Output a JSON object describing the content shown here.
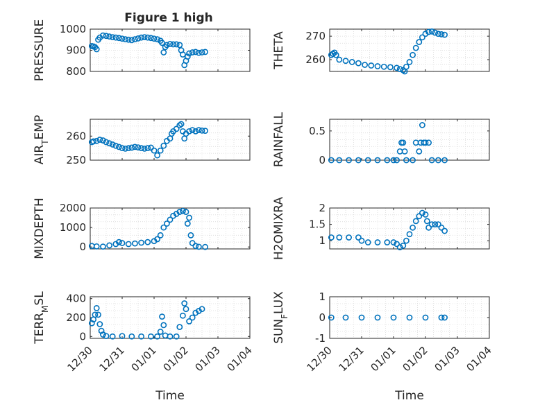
{
  "figure": {
    "title": "Figure 1 high",
    "x_axis_label": "Time",
    "x_tick_labels": [
      "12/30",
      "12/31",
      "01/01",
      "01/02",
      "01/03",
      "01/04"
    ]
  },
  "colors": {
    "marker": "#0072bd",
    "axis": "#262626",
    "grid": "#dcdcdc"
  },
  "chart_data": [
    {
      "type": "scatter",
      "marker": "circle-open",
      "grid": true,
      "ylabel": "PRESSURE",
      "xlabel": "",
      "ylim": [
        800,
        1000
      ],
      "yticks": [
        800,
        900,
        1000
      ],
      "xlim": [
        0,
        5
      ],
      "x_unit": "days since 12/30",
      "series": [
        {
          "points": [
            [
              0.05,
              920
            ],
            [
              0.1,
              918
            ],
            [
              0.15,
              915
            ],
            [
              0.2,
              905
            ],
            [
              0.25,
              950
            ],
            [
              0.3,
              960
            ],
            [
              0.4,
              970
            ],
            [
              0.5,
              968
            ],
            [
              0.6,
              965
            ],
            [
              0.7,
              962
            ],
            [
              0.8,
              960
            ],
            [
              0.9,
              958
            ],
            [
              1.0,
              955
            ],
            [
              1.1,
              952
            ],
            [
              1.2,
              950
            ],
            [
              1.3,
              948
            ],
            [
              1.4,
              952
            ],
            [
              1.5,
              956
            ],
            [
              1.6,
              960
            ],
            [
              1.7,
              962
            ],
            [
              1.8,
              960
            ],
            [
              1.9,
              958
            ],
            [
              2.0,
              955
            ],
            [
              2.1,
              952
            ],
            [
              2.2,
              945
            ],
            [
              2.25,
              935
            ],
            [
              2.3,
              890
            ],
            [
              2.35,
              915
            ],
            [
              2.4,
              925
            ],
            [
              2.5,
              930
            ],
            [
              2.6,
              928
            ],
            [
              2.7,
              928
            ],
            [
              2.8,
              925
            ],
            [
              2.85,
              900
            ],
            [
              2.9,
              880
            ],
            [
              2.95,
              830
            ],
            [
              3.0,
              850
            ],
            [
              3.05,
              870
            ],
            [
              3.1,
              885
            ],
            [
              3.2,
              890
            ],
            [
              3.3,
              892
            ],
            [
              3.4,
              888
            ],
            [
              3.5,
              890
            ],
            [
              3.6,
              892
            ]
          ]
        }
      ]
    },
    {
      "type": "scatter",
      "marker": "circle-open",
      "grid": true,
      "ylabel": "THETA",
      "xlabel": "",
      "ylim": [
        255,
        273
      ],
      "yticks": [
        260,
        270
      ],
      "xlim": [
        0,
        5
      ],
      "series": [
        {
          "points": [
            [
              0.05,
              262
            ],
            [
              0.1,
              262.5
            ],
            [
              0.15,
              263
            ],
            [
              0.2,
              262
            ],
            [
              0.3,
              260
            ],
            [
              0.5,
              259.5
            ],
            [
              0.7,
              259
            ],
            [
              0.9,
              258.5
            ],
            [
              1.1,
              257.8
            ],
            [
              1.3,
              257.5
            ],
            [
              1.5,
              257.2
            ],
            [
              1.7,
              257
            ],
            [
              1.9,
              256.8
            ],
            [
              2.1,
              256.5
            ],
            [
              2.2,
              256
            ],
            [
              2.3,
              255.5
            ],
            [
              2.35,
              255
            ],
            [
              2.4,
              257
            ],
            [
              2.5,
              259
            ],
            [
              2.6,
              262
            ],
            [
              2.7,
              265
            ],
            [
              2.8,
              267.5
            ],
            [
              2.9,
              269.5
            ],
            [
              3.0,
              271
            ],
            [
              3.1,
              271.8
            ],
            [
              3.2,
              272
            ],
            [
              3.3,
              271.5
            ],
            [
              3.4,
              271
            ],
            [
              3.5,
              270.8
            ],
            [
              3.6,
              270.6
            ]
          ]
        }
      ]
    },
    {
      "type": "scatter",
      "marker": "circle-open",
      "grid": true,
      "ylabel": "AIR_TEMP",
      "xlabel": "",
      "ylim": [
        250,
        267
      ],
      "yticks": [
        250,
        260
      ],
      "xlim": [
        0,
        5
      ],
      "series": [
        {
          "points": [
            [
              0.05,
              257.5
            ],
            [
              0.1,
              257.8
            ],
            [
              0.2,
              258
            ],
            [
              0.3,
              258.5
            ],
            [
              0.4,
              258.2
            ],
            [
              0.5,
              257.5
            ],
            [
              0.6,
              257
            ],
            [
              0.7,
              256.5
            ],
            [
              0.8,
              256
            ],
            [
              0.9,
              255.5
            ],
            [
              1.0,
              255
            ],
            [
              1.1,
              254.8
            ],
            [
              1.2,
              255
            ],
            [
              1.3,
              255.2
            ],
            [
              1.4,
              255.5
            ],
            [
              1.5,
              255.3
            ],
            [
              1.6,
              255
            ],
            [
              1.7,
              254.8
            ],
            [
              1.8,
              255
            ],
            [
              1.9,
              255.2
            ],
            [
              2.0,
              254
            ],
            [
              2.1,
              252
            ],
            [
              2.2,
              254
            ],
            [
              2.3,
              256
            ],
            [
              2.4,
              258
            ],
            [
              2.5,
              259
            ],
            [
              2.55,
              261
            ],
            [
              2.6,
              262
            ],
            [
              2.7,
              263
            ],
            [
              2.8,
              264.5
            ],
            [
              2.85,
              265
            ],
            [
              2.9,
              262
            ],
            [
              2.95,
              259
            ],
            [
              3.0,
              261
            ],
            [
              3.1,
              262
            ],
            [
              3.2,
              262.5
            ],
            [
              3.3,
              262
            ],
            [
              3.4,
              262.5
            ],
            [
              3.5,
              262.3
            ],
            [
              3.6,
              262.2
            ]
          ]
        }
      ]
    },
    {
      "type": "scatter",
      "marker": "circle-open",
      "grid": true,
      "ylabel": "RAINFALL",
      "xlabel": "",
      "ylim": [
        0,
        0.7
      ],
      "yticks": [
        0,
        0.5
      ],
      "xlim": [
        0,
        5
      ],
      "series": [
        {
          "points": [
            [
              0.05,
              0
            ],
            [
              0.3,
              0
            ],
            [
              0.6,
              0
            ],
            [
              0.9,
              0
            ],
            [
              1.2,
              0
            ],
            [
              1.5,
              0
            ],
            [
              1.8,
              0
            ],
            [
              2.0,
              0
            ],
            [
              2.1,
              0
            ],
            [
              2.2,
              0.15
            ],
            [
              2.25,
              0.3
            ],
            [
              2.3,
              0.3
            ],
            [
              2.35,
              0.15
            ],
            [
              2.4,
              0
            ],
            [
              2.6,
              0
            ],
            [
              2.7,
              0.3
            ],
            [
              2.8,
              0.15
            ],
            [
              2.85,
              0.3
            ],
            [
              2.9,
              0.6
            ],
            [
              2.95,
              0.3
            ],
            [
              3.0,
              0.3
            ],
            [
              3.1,
              0.3
            ],
            [
              3.2,
              0
            ],
            [
              3.4,
              0
            ],
            [
              3.6,
              0
            ]
          ]
        }
      ]
    },
    {
      "type": "scatter",
      "marker": "circle-open",
      "grid": true,
      "ylabel": "MIXDEPTH",
      "xlabel": "",
      "ylim": [
        -100,
        2000
      ],
      "yticks": [
        0,
        1000,
        2000
      ],
      "xlim": [
        0,
        5
      ],
      "series": [
        {
          "points": [
            [
              0.05,
              50
            ],
            [
              0.2,
              30
            ],
            [
              0.4,
              20
            ],
            [
              0.6,
              80
            ],
            [
              0.8,
              150
            ],
            [
              0.9,
              250
            ],
            [
              1.0,
              200
            ],
            [
              1.2,
              150
            ],
            [
              1.4,
              180
            ],
            [
              1.6,
              220
            ],
            [
              1.8,
              250
            ],
            [
              2.0,
              300
            ],
            [
              2.1,
              400
            ],
            [
              2.2,
              600
            ],
            [
              2.3,
              1000
            ],
            [
              2.4,
              1200
            ],
            [
              2.5,
              1400
            ],
            [
              2.6,
              1600
            ],
            [
              2.7,
              1700
            ],
            [
              2.8,
              1800
            ],
            [
              2.9,
              1850
            ],
            [
              3.0,
              1800
            ],
            [
              3.05,
              1200
            ],
            [
              3.1,
              1500
            ],
            [
              3.15,
              600
            ],
            [
              3.2,
              200
            ],
            [
              3.3,
              50
            ],
            [
              3.4,
              10
            ],
            [
              3.6,
              0
            ]
          ]
        }
      ]
    },
    {
      "type": "scatter",
      "marker": "circle-open",
      "grid": true,
      "ylabel": "H2OMIXRA",
      "xlabel": "",
      "ylim": [
        0.75,
        2
      ],
      "yticks": [
        1,
        1.5,
        2
      ],
      "xlim": [
        0,
        5
      ],
      "series": [
        {
          "points": [
            [
              0.05,
              1.1
            ],
            [
              0.3,
              1.1
            ],
            [
              0.6,
              1.1
            ],
            [
              0.9,
              1.1
            ],
            [
              1.0,
              1.0
            ],
            [
              1.2,
              0.95
            ],
            [
              1.5,
              0.95
            ],
            [
              1.8,
              0.95
            ],
            [
              2.0,
              0.95
            ],
            [
              2.1,
              0.9
            ],
            [
              2.2,
              0.8
            ],
            [
              2.3,
              0.85
            ],
            [
              2.4,
              1.0
            ],
            [
              2.5,
              1.2
            ],
            [
              2.6,
              1.4
            ],
            [
              2.7,
              1.6
            ],
            [
              2.8,
              1.75
            ],
            [
              2.9,
              1.85
            ],
            [
              3.0,
              1.8
            ],
            [
              3.05,
              1.6
            ],
            [
              3.1,
              1.4
            ],
            [
              3.2,
              1.5
            ],
            [
              3.3,
              1.5
            ],
            [
              3.4,
              1.5
            ],
            [
              3.5,
              1.4
            ],
            [
              3.6,
              1.3
            ]
          ]
        }
      ]
    },
    {
      "type": "scatter",
      "marker": "circle-open",
      "grid": true,
      "ylabel": "TERR_MSL",
      "xlabel": "Time",
      "ylim": [
        -20,
        420
      ],
      "yticks": [
        0,
        200,
        400
      ],
      "xlim": [
        0,
        5
      ],
      "series": [
        {
          "points": [
            [
              0.05,
              140
            ],
            [
              0.1,
              180
            ],
            [
              0.15,
              230
            ],
            [
              0.2,
              300
            ],
            [
              0.25,
              230
            ],
            [
              0.3,
              130
            ],
            [
              0.35,
              60
            ],
            [
              0.4,
              20
            ],
            [
              0.5,
              5
            ],
            [
              0.7,
              0
            ],
            [
              1.0,
              5
            ],
            [
              1.3,
              0
            ],
            [
              1.6,
              0
            ],
            [
              1.9,
              0
            ],
            [
              2.1,
              0
            ],
            [
              2.2,
              50
            ],
            [
              2.25,
              210
            ],
            [
              2.3,
              120
            ],
            [
              2.35,
              10
            ],
            [
              2.5,
              0
            ],
            [
              2.7,
              0
            ],
            [
              2.8,
              100
            ],
            [
              2.9,
              220
            ],
            [
              2.95,
              350
            ],
            [
              3.0,
              290
            ],
            [
              3.1,
              160
            ],
            [
              3.2,
              200
            ],
            [
              3.3,
              250
            ],
            [
              3.4,
              270
            ],
            [
              3.5,
              290
            ]
          ]
        }
      ]
    },
    {
      "type": "scatter",
      "marker": "circle-open",
      "grid": true,
      "ylabel": "SUN_FLUX",
      "xlabel": "Time",
      "ylim": [
        -1,
        1
      ],
      "yticks": [
        -1,
        0,
        1
      ],
      "xlim": [
        0,
        5
      ],
      "series": [
        {
          "points": [
            [
              0.05,
              0
            ],
            [
              0.5,
              0
            ],
            [
              1.0,
              0
            ],
            [
              1.5,
              0
            ],
            [
              2.0,
              0
            ],
            [
              2.5,
              0
            ],
            [
              3.0,
              0
            ],
            [
              3.5,
              0
            ],
            [
              3.6,
              0
            ]
          ]
        }
      ]
    }
  ]
}
